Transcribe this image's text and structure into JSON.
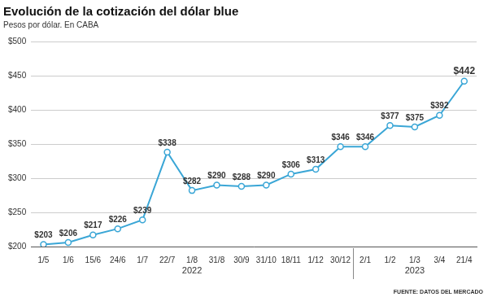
{
  "chart_data": {
    "type": "line",
    "title": "Evolución de la cotización del dólar blue",
    "subtitle": "Pesos por dólar. En CABA",
    "source": "FUENTE: DATOS DEL MERCADO",
    "categories": [
      "1/5",
      "1/6",
      "15/6",
      "24/6",
      "1/7",
      "22/7",
      "1/8",
      "31/8",
      "30/9",
      "31/10",
      "18/11",
      "1/12",
      "30/12",
      "2/1",
      "1/2",
      "1/3",
      "3/4",
      "21/4"
    ],
    "values": [
      203,
      206,
      217,
      226,
      239,
      338,
      282,
      290,
      288,
      290,
      306,
      313,
      346,
      346,
      377,
      375,
      392,
      442
    ],
    "value_labels": [
      "$203",
      "$206",
      "$217",
      "$226",
      "$239",
      "$338",
      "$282",
      "$290",
      "$288",
      "$290",
      "$306",
      "$313",
      "$346",
      "$346",
      "$377",
      "$375",
      "$392",
      "$442"
    ],
    "x_groups": [
      {
        "label": "2022",
        "from": "1/5",
        "to": "30/12"
      },
      {
        "label": "2023",
        "from": "2/1",
        "to": "21/4"
      }
    ],
    "color": "#3aa6d6",
    "marker": "circle",
    "ylim": [
      200,
      500
    ],
    "yticks": [
      {
        "value": 200,
        "label": "$200"
      },
      {
        "value": 250,
        "label": "$250"
      },
      {
        "value": 300,
        "label": "$300"
      },
      {
        "value": 350,
        "label": "$350"
      },
      {
        "value": 400,
        "label": "$400"
      },
      {
        "value": 450,
        "label": "$450"
      },
      {
        "value": 500,
        "label": "$500"
      }
    ],
    "grid": true,
    "data_labels": true
  }
}
